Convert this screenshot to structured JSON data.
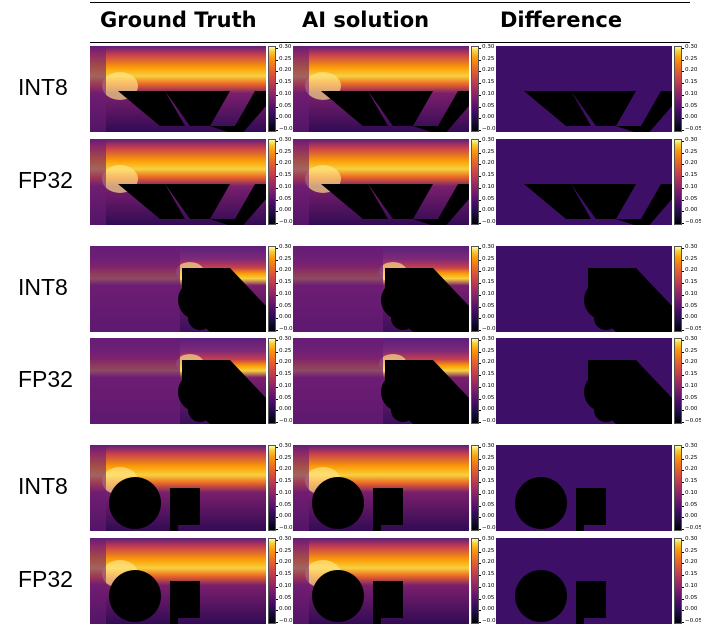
{
  "headers": {
    "ground_truth": "Ground Truth",
    "ai_solution": "AI solution",
    "difference": "Difference"
  },
  "rows": [
    {
      "label": "INT8"
    },
    {
      "label": "FP32"
    },
    {
      "label": "INT8"
    },
    {
      "label": "FP32"
    },
    {
      "label": "INT8"
    },
    {
      "label": "FP32"
    }
  ],
  "colorbar": {
    "colormap": "inferno",
    "ticks": [
      "0.30",
      "0.25",
      "0.20",
      "0.15",
      "0.10",
      "0.05",
      "0.00",
      "−0.05"
    ]
  }
}
